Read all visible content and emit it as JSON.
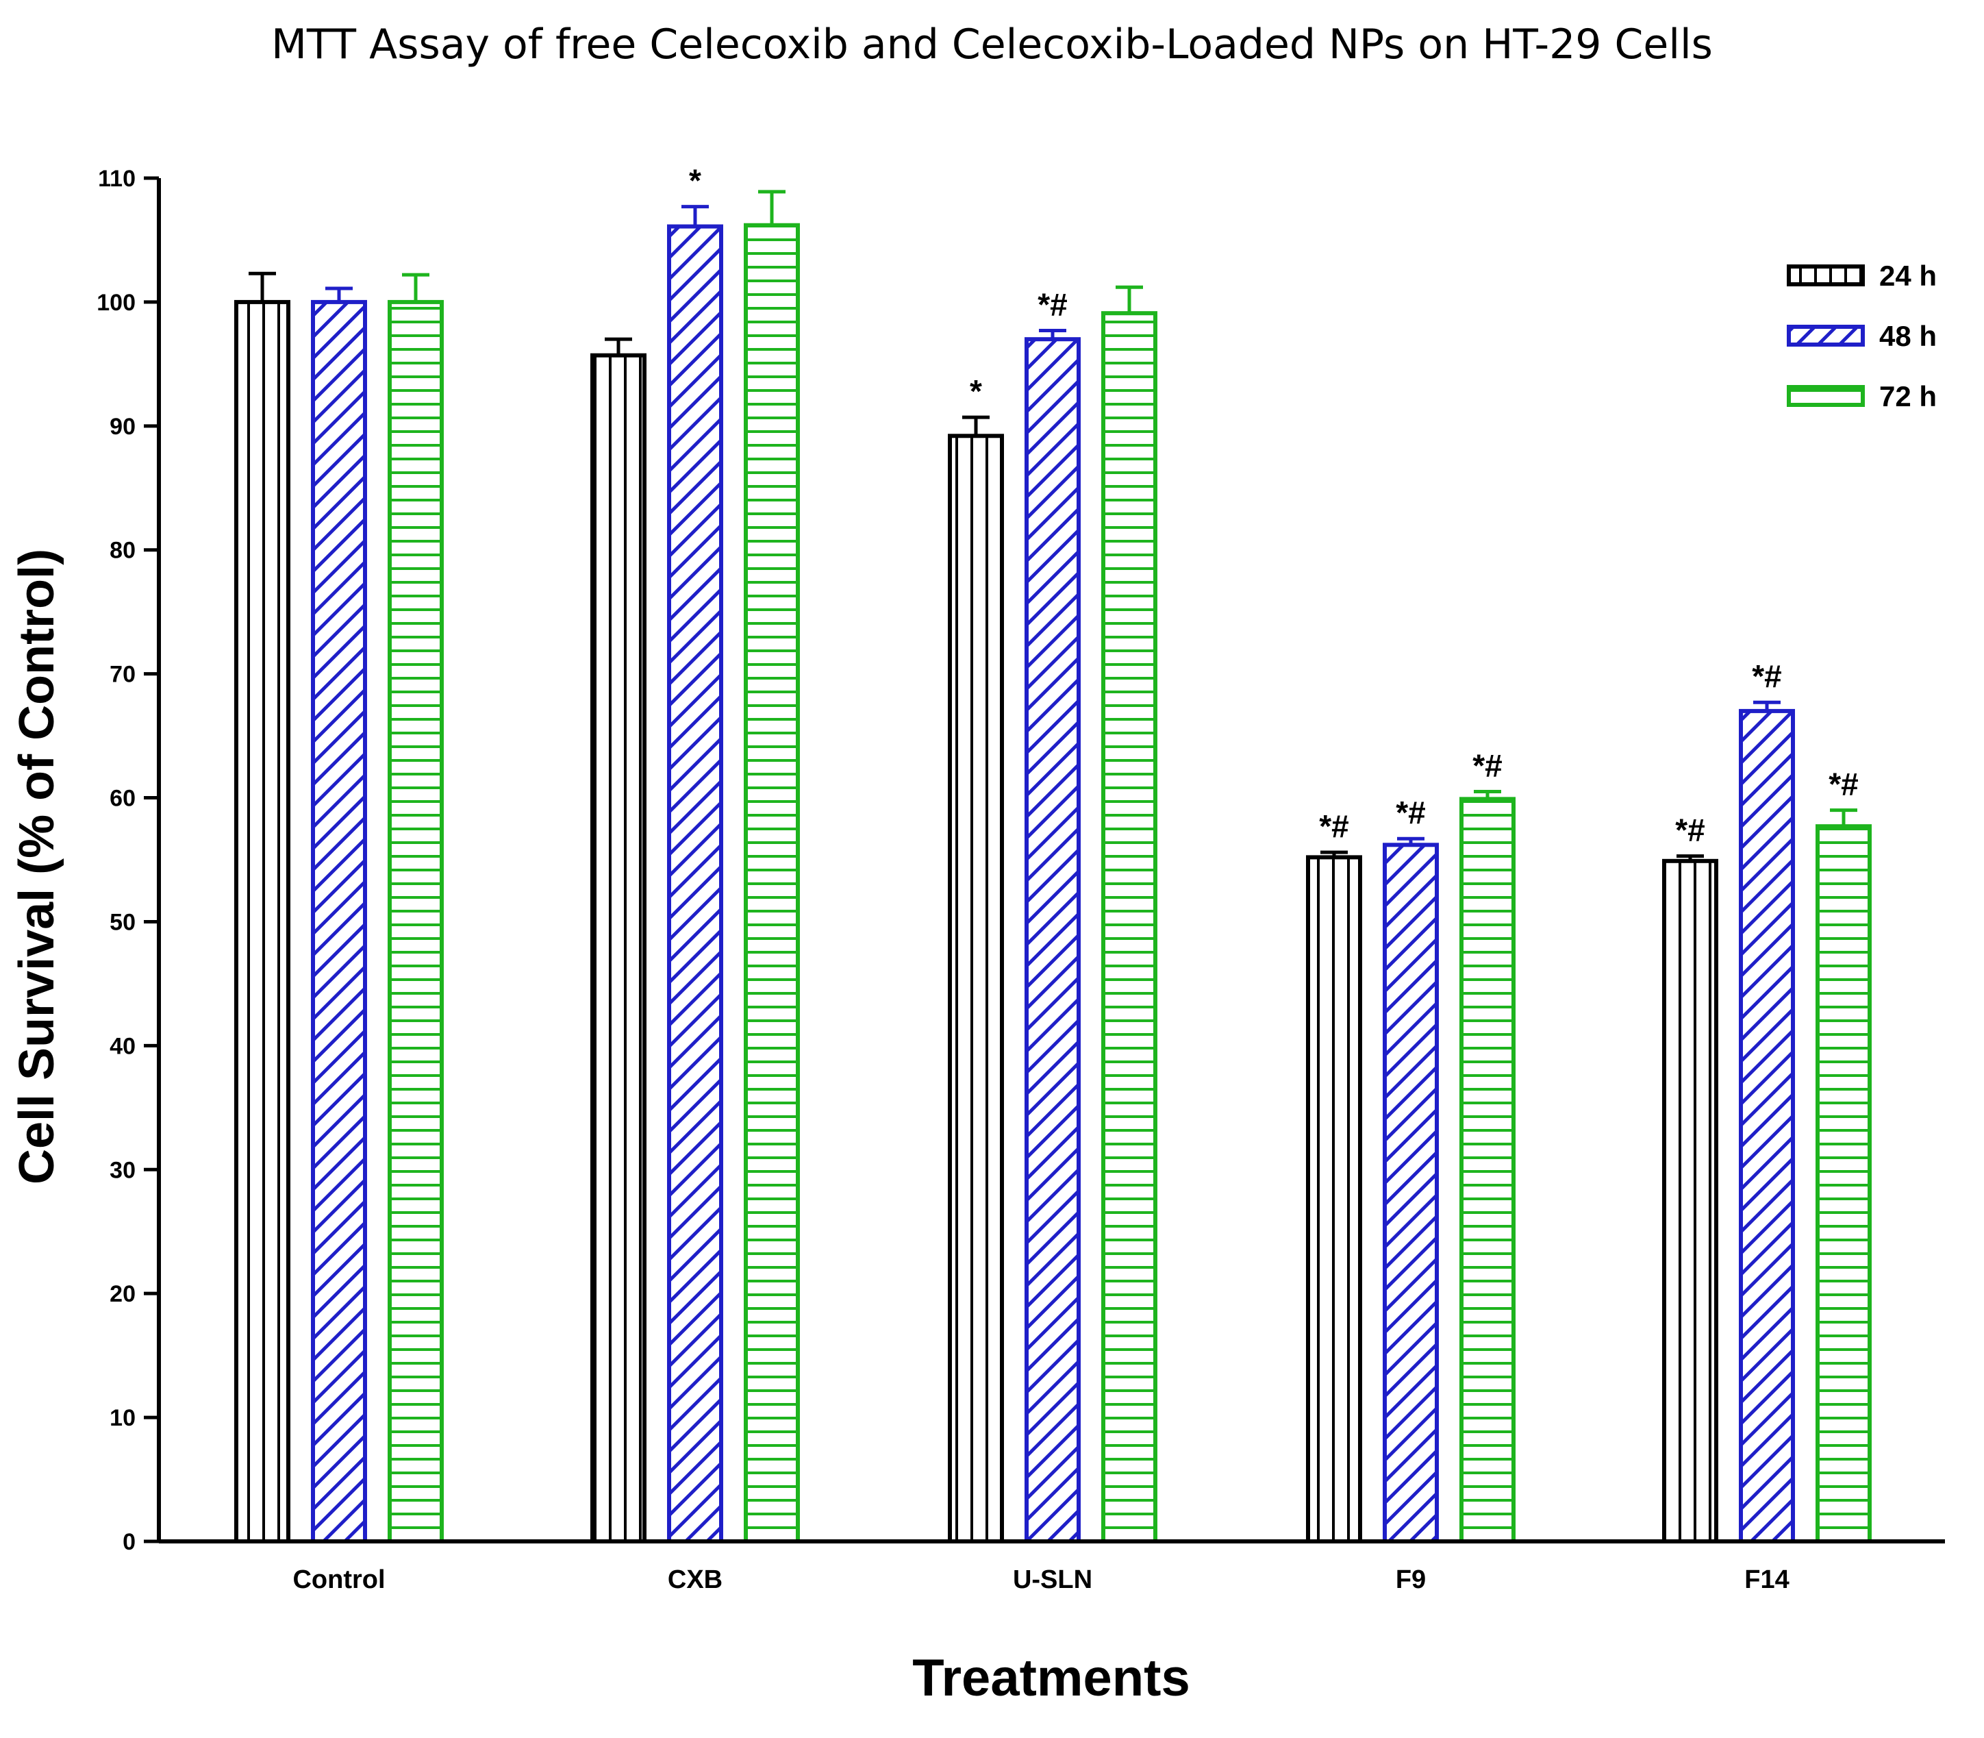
{
  "chart_data": {
    "type": "bar",
    "title": "MTT Assay of free Celecoxib and Celecoxib-Loaded NPs on HT-29 Cells",
    "xlabel": "Treatments",
    "ylabel": "Cell Survival (% of Control)",
    "ylim": [
      0,
      110
    ],
    "yticks": [
      0,
      10,
      20,
      30,
      40,
      50,
      60,
      70,
      80,
      90,
      100,
      110
    ],
    "categories": [
      "Control",
      "CXB",
      "U-SLN",
      "F9",
      "F14"
    ],
    "legend_position": "top-right",
    "series": [
      {
        "name": "24 h",
        "color": "#000000",
        "pattern": "vertical-lines",
        "values": [
          100.0,
          95.7,
          89.2,
          55.2,
          54.9
        ],
        "errors": [
          2.3,
          1.3,
          1.5,
          0.4,
          0.4
        ],
        "annotations": [
          "",
          "",
          "*",
          "*#",
          "*#"
        ]
      },
      {
        "name": "48 h",
        "color": "#1f1fc8",
        "pattern": "diagonal-lines",
        "values": [
          100.0,
          106.1,
          97.0,
          56.2,
          67.0
        ],
        "errors": [
          1.1,
          1.6,
          0.7,
          0.5,
          0.7
        ],
        "annotations": [
          "",
          "*",
          "*#",
          "*#",
          "*#"
        ]
      },
      {
        "name": "72 h",
        "color": "#1eb41e",
        "pattern": "horizontal-lines",
        "values": [
          100.0,
          106.2,
          99.1,
          59.9,
          57.7
        ],
        "errors": [
          2.2,
          2.7,
          2.1,
          0.6,
          1.3
        ],
        "annotations": [
          "",
          "",
          "",
          "*#",
          "*#"
        ]
      }
    ]
  }
}
